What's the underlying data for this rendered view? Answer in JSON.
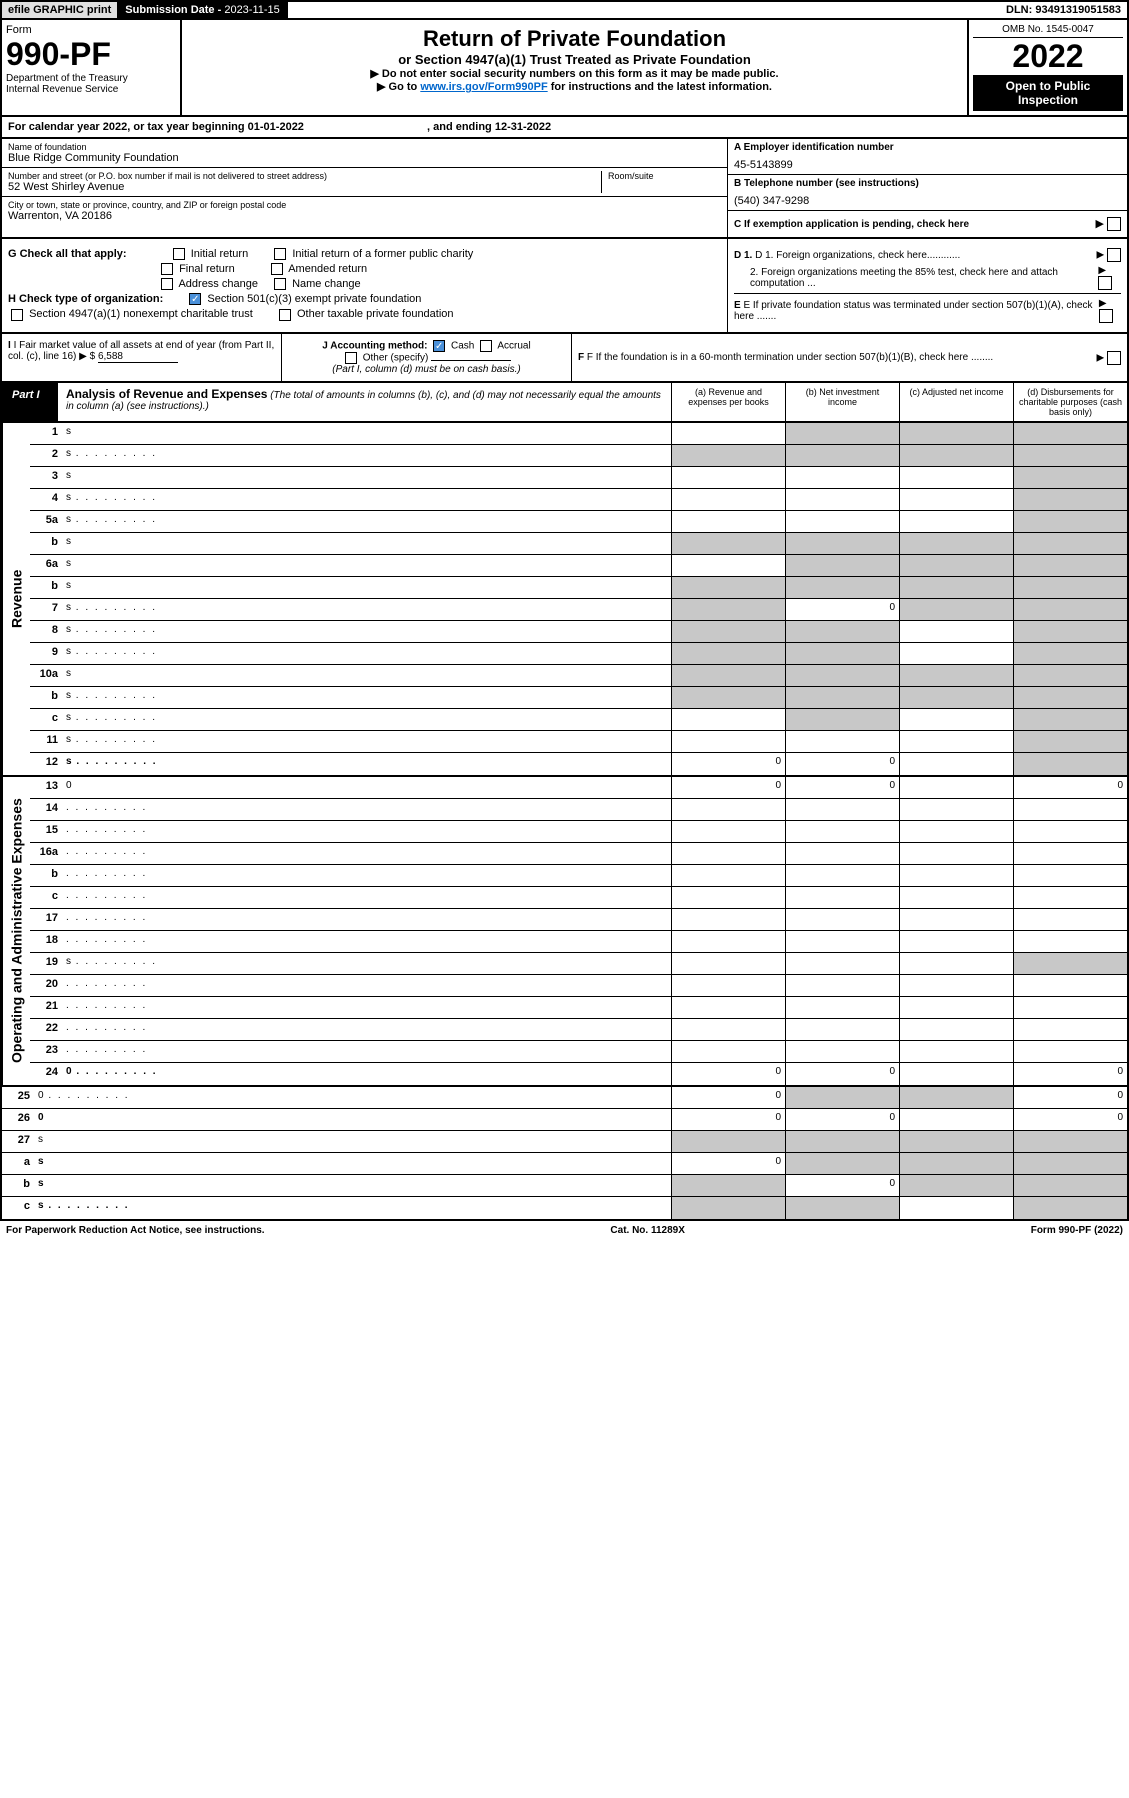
{
  "topbar": {
    "efile": "efile GRAPHIC print",
    "sub_date_lbl": "Submission Date - ",
    "sub_date": "2023-11-15",
    "dln": "DLN: 93491319051583"
  },
  "header": {
    "form_word": "Form",
    "form_no": "990-PF",
    "dept": "Department of the Treasury",
    "irs": "Internal Revenue Service",
    "title": "Return of Private Foundation",
    "subtitle": "or Section 4947(a)(1) Trust Treated as Private Foundation",
    "instr1": "▶ Do not enter social security numbers on this form as it may be made public.",
    "instr2_pre": "▶ Go to ",
    "instr2_link": "www.irs.gov/Form990PF",
    "instr2_post": " for instructions and the latest information.",
    "omb": "OMB No. 1545-0047",
    "year": "2022",
    "inspect": "Open to Public Inspection"
  },
  "cal_year": {
    "pre": "For calendar year 2022, or tax year beginning ",
    "begin": "01-01-2022",
    "mid": " , and ending ",
    "end": "12-31-2022"
  },
  "entity": {
    "name_lbl": "Name of foundation",
    "name": "Blue Ridge Community Foundation",
    "addr_lbl": "Number and street (or P.O. box number if mail is not delivered to street address)",
    "addr": "52 West Shirley Avenue",
    "room_lbl": "Room/suite",
    "city_lbl": "City or town, state or province, country, and ZIP or foreign postal code",
    "city": "Warrenton, VA  20186",
    "a_lbl": "A Employer identification number",
    "a_val": "45-5143899",
    "b_lbl": "B Telephone number (see instructions)",
    "b_val": "(540) 347-9298",
    "c_lbl": "C If exemption application is pending, check here"
  },
  "checks": {
    "g_lbl": "G Check all that apply:",
    "g_opts": [
      "Initial return",
      "Initial return of a former public charity",
      "Final return",
      "Amended return",
      "Address change",
      "Name change"
    ],
    "h_lbl": "H Check type of organization:",
    "h_opt1": "Section 501(c)(3) exempt private foundation",
    "h_opt2": "Section 4947(a)(1) nonexempt charitable trust",
    "h_opt3": "Other taxable private foundation",
    "d1": "D 1. Foreign organizations, check here............",
    "d2": "2. Foreign organizations meeting the 85% test, check here and attach computation ...",
    "e_lbl": "E  If private foundation status was terminated under section 507(b)(1)(A), check here .......",
    "i_lbl": "I Fair market value of all assets at end of year (from Part II, col. (c), line 16) ▶ $ ",
    "i_val": "6,588",
    "j_lbl": "J Accounting method:",
    "j_cash": "Cash",
    "j_accrual": "Accrual",
    "j_other": "Other (specify)",
    "j_note": "(Part I, column (d) must be on cash basis.)",
    "f_lbl": "F  If the foundation is in a 60-month termination under section 507(b)(1)(B), check here ........"
  },
  "part1": {
    "lbl": "Part I",
    "title": "Analysis of Revenue and Expenses",
    "note": " (The total of amounts in columns (b), (c), and (d) may not necessarily equal the amounts in column (a) (see instructions).)",
    "col_a": "(a)  Revenue and expenses per books",
    "col_b": "(b)  Net investment income",
    "col_c": "(c)  Adjusted net income",
    "col_d": "(d)  Disbursements for charitable purposes (cash basis only)"
  },
  "side_labels": {
    "rev": "Revenue",
    "exp": "Operating and Administrative Expenses"
  },
  "rows": [
    {
      "n": "1",
      "d": "s",
      "a": "",
      "b": "s",
      "c": "s"
    },
    {
      "n": "2",
      "d": "s",
      "a": "s",
      "b": "s",
      "c": "s",
      "dots": true
    },
    {
      "n": "3",
      "d": "s",
      "a": "",
      "b": "",
      "c": ""
    },
    {
      "n": "4",
      "d": "s",
      "a": "",
      "b": "",
      "c": "",
      "dots": true
    },
    {
      "n": "5a",
      "d": "s",
      "a": "",
      "b": "",
      "c": "",
      "dots": true
    },
    {
      "n": "b",
      "d": "s",
      "a": "s",
      "b": "s",
      "c": "s"
    },
    {
      "n": "6a",
      "d": "s",
      "a": "",
      "b": "s",
      "c": "s"
    },
    {
      "n": "b",
      "d": "s",
      "a": "s",
      "b": "s",
      "c": "s"
    },
    {
      "n": "7",
      "d": "s",
      "a": "s",
      "b": "0",
      "c": "s",
      "dots": true
    },
    {
      "n": "8",
      "d": "s",
      "a": "s",
      "b": "s",
      "c": "",
      "dots": true
    },
    {
      "n": "9",
      "d": "s",
      "a": "s",
      "b": "s",
      "c": "",
      "dots": true
    },
    {
      "n": "10a",
      "d": "s",
      "a": "s",
      "b": "s",
      "c": "s"
    },
    {
      "n": "b",
      "d": "s",
      "a": "s",
      "b": "s",
      "c": "s",
      "dots": true
    },
    {
      "n": "c",
      "d": "s",
      "a": "",
      "b": "s",
      "c": "",
      "dots": true
    },
    {
      "n": "11",
      "d": "s",
      "a": "",
      "b": "",
      "c": "",
      "dots": true
    },
    {
      "n": "12",
      "d": "s",
      "a": "0",
      "b": "0",
      "c": "",
      "bold": true,
      "dots": true
    },
    {
      "n": "13",
      "d": "0",
      "a": "0",
      "b": "0",
      "c": ""
    },
    {
      "n": "14",
      "d": "",
      "a": "",
      "b": "",
      "c": "",
      "dots": true
    },
    {
      "n": "15",
      "d": "",
      "a": "",
      "b": "",
      "c": "",
      "dots": true
    },
    {
      "n": "16a",
      "d": "",
      "a": "",
      "b": "",
      "c": "",
      "dots": true
    },
    {
      "n": "b",
      "d": "",
      "a": "",
      "b": "",
      "c": "",
      "dots": true
    },
    {
      "n": "c",
      "d": "",
      "a": "",
      "b": "",
      "c": "",
      "dots": true
    },
    {
      "n": "17",
      "d": "",
      "a": "",
      "b": "",
      "c": "",
      "dots": true
    },
    {
      "n": "18",
      "d": "",
      "a": "",
      "b": "",
      "c": "",
      "dots": true
    },
    {
      "n": "19",
      "d": "s",
      "a": "",
      "b": "",
      "c": "",
      "dots": true
    },
    {
      "n": "20",
      "d": "",
      "a": "",
      "b": "",
      "c": "",
      "dots": true
    },
    {
      "n": "21",
      "d": "",
      "a": "",
      "b": "",
      "c": "",
      "dots": true
    },
    {
      "n": "22",
      "d": "",
      "a": "",
      "b": "",
      "c": "",
      "dots": true
    },
    {
      "n": "23",
      "d": "",
      "a": "",
      "b": "",
      "c": "",
      "dots": true
    },
    {
      "n": "24",
      "d": "0",
      "a": "0",
      "b": "0",
      "c": "",
      "bold": true,
      "dots": true
    },
    {
      "n": "25",
      "d": "0",
      "a": "0",
      "b": "s",
      "c": "s",
      "dots": true
    },
    {
      "n": "26",
      "d": "0",
      "a": "0",
      "b": "0",
      "c": "",
      "bold": true
    },
    {
      "n": "27",
      "d": "s",
      "a": "s",
      "b": "s",
      "c": "s"
    },
    {
      "n": "a",
      "d": "s",
      "a": "0",
      "b": "s",
      "c": "s",
      "bold": true
    },
    {
      "n": "b",
      "d": "s",
      "a": "s",
      "b": "0",
      "c": "s",
      "bold": true
    },
    {
      "n": "c",
      "d": "s",
      "a": "s",
      "b": "s",
      "c": "",
      "bold": true,
      "dots": true
    }
  ],
  "footer": {
    "left": "For Paperwork Reduction Act Notice, see instructions.",
    "mid": "Cat. No. 11289X",
    "right": "Form 990-PF (2022)"
  }
}
